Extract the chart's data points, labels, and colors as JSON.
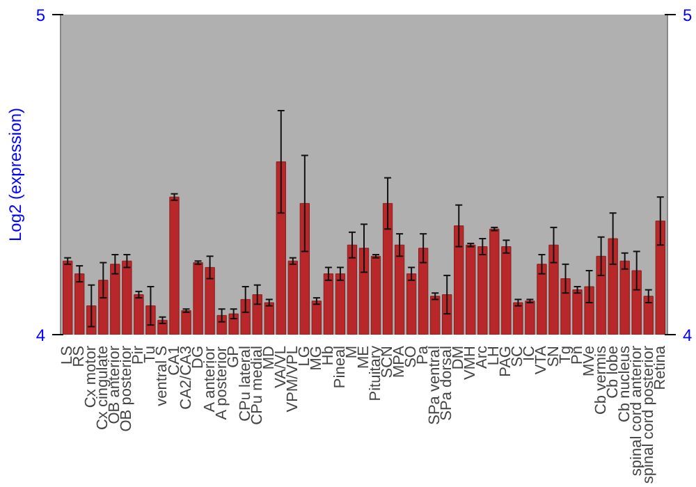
{
  "chart_data": {
    "type": "bar",
    "ylabel": "Log2 (expression)",
    "categories": [
      "LS",
      "RS",
      "Cx motor",
      "Cx cingulate",
      "OB anterior",
      "OB posterior",
      "Pir",
      "Tu",
      "ventral S",
      "CA1",
      "CA2/CA3",
      "DG",
      "A anterior",
      "A posterior",
      "GP",
      "CPu lateral",
      "CPu medial",
      "MD",
      "VA/VL",
      "VPM/VPL",
      "LG",
      "MG",
      "Hb",
      "Pineal",
      "M",
      "ME",
      "Pituitary",
      "SCN",
      "MPA",
      "SO",
      "Pa",
      "SPa ventral",
      "SPa dorsal",
      "DM",
      "VMH",
      "Arc",
      "LH",
      "PAG",
      "SC",
      "IC",
      "VTA",
      "SN",
      "Tg",
      "Pn",
      "MVe",
      "Cb vermis",
      "Cb lobe",
      "Cb nucleus",
      "spinal cord anterior",
      "spinal cord posterior",
      "Retina"
    ],
    "values": [
      4.23,
      4.19,
      4.09,
      4.17,
      4.22,
      4.23,
      4.125,
      4.09,
      4.045,
      4.43,
      4.075,
      4.225,
      4.21,
      4.06,
      4.065,
      4.11,
      4.125,
      4.1,
      4.54,
      4.23,
      4.41,
      4.105,
      4.19,
      4.19,
      4.28,
      4.27,
      4.245,
      4.41,
      4.28,
      4.19,
      4.27,
      4.12,
      4.125,
      4.34,
      4.28,
      4.275,
      4.33,
      4.275,
      4.1,
      4.105,
      4.22,
      4.28,
      4.175,
      4.14,
      4.15,
      4.245,
      4.3,
      4.23,
      4.2,
      4.12,
      4.355
    ],
    "errors": [
      0.01,
      0.025,
      0.065,
      0.055,
      0.03,
      0.02,
      0.01,
      0.06,
      0.01,
      0.01,
      0.005,
      0.005,
      0.035,
      0.02,
      0.015,
      0.04,
      0.03,
      0.01,
      0.16,
      0.01,
      0.15,
      0.01,
      0.02,
      0.02,
      0.04,
      0.075,
      0.005,
      0.08,
      0.035,
      0.02,
      0.045,
      0.01,
      0.06,
      0.065,
      0.005,
      0.025,
      0.005,
      0.02,
      0.01,
      0.005,
      0.03,
      0.055,
      0.045,
      0.01,
      0.05,
      0.06,
      0.08,
      0.025,
      0.06,
      0.02,
      0.075
    ],
    "color": "#b8282a",
    "ylim": [
      4,
      5
    ],
    "yticks": [
      4,
      5
    ],
    "y2lim": [
      4,
      5
    ],
    "y2ticks": [
      4,
      5
    ],
    "grid": false
  }
}
